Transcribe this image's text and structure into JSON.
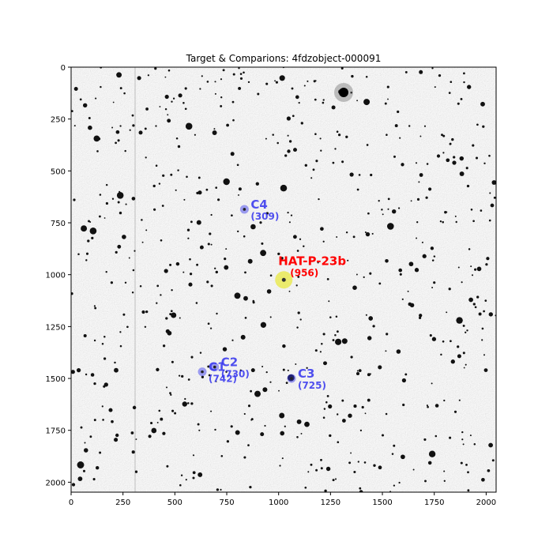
{
  "chart_data": {
    "type": "scatter",
    "title": "Target & Comparions: 4fdzobject-000091",
    "xlabel": "",
    "ylabel": "",
    "xlim": [
      0,
      2048
    ],
    "ylim": [
      2048,
      0
    ],
    "x_ticks": [
      0,
      250,
      500,
      750,
      1000,
      1250,
      1500,
      1750,
      2000
    ],
    "y_ticks": [
      0,
      250,
      500,
      750,
      1000,
      1250,
      1500,
      1750,
      2000
    ],
    "grid": false,
    "background": "inverted grayscale star field",
    "target": {
      "name": "HAT-P-23b",
      "count_label": "(956)",
      "x": 1025,
      "y": 1025,
      "color": "#ff0000",
      "marker_color": "#e6e600"
    },
    "comparisons": [
      {
        "name": "C4",
        "count_label": "(309)",
        "x": 835,
        "y": 685,
        "color": "#3333ee"
      },
      {
        "name": "C1",
        "count_label": "(742)",
        "x": 632,
        "y": 1468,
        "color": "#3333ee"
      },
      {
        "name": "C2",
        "count_label": "(730)",
        "x": 692,
        "y": 1445,
        "color": "#3333ee"
      },
      {
        "name": "C3",
        "count_label": "(725)",
        "x": 1062,
        "y": 1500,
        "color": "#3333ee"
      }
    ]
  }
}
